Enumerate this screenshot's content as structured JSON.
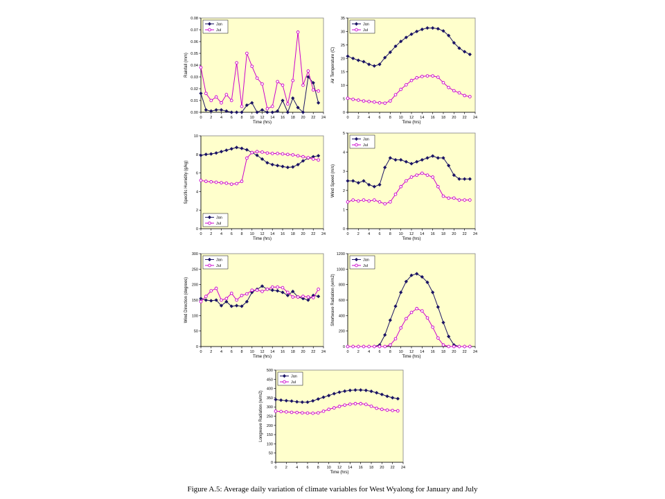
{
  "figure": {
    "caption": "Figure A.5: Average daily variation of climate variables for West Wyalong for January and July"
  },
  "colors": {
    "plot_bg": "#ffffcc",
    "jan": "#1b1464",
    "jul": "#cc00cc",
    "axis": "#000000"
  },
  "chart_data": [
    {
      "type": "line",
      "xlabel": "Time (hrs)",
      "ylabel": "Rainfall (mm)",
      "xlim": [
        0,
        24
      ],
      "xticks": [
        0,
        2,
        4,
        6,
        8,
        10,
        12,
        14,
        16,
        18,
        20,
        22,
        24
      ],
      "ylim": [
        0,
        0.08
      ],
      "yticks": [
        0,
        0.01,
        0.02,
        0.03,
        0.04,
        0.05,
        0.06,
        0.07,
        0.08
      ],
      "ytick_labels": [
        "0.00",
        "0.01",
        "0.02",
        "0.03",
        "0.04",
        "0.05",
        "0.06",
        "0.07",
        "0.08"
      ],
      "legend": "top-left",
      "x": [
        0,
        1,
        2,
        3,
        4,
        5,
        6,
        7,
        8,
        9,
        10,
        11,
        12,
        13,
        14,
        15,
        16,
        17,
        18,
        19,
        20,
        21,
        22,
        23
      ],
      "series": [
        {
          "name": "Jan",
          "marker": "diamond",
          "values": [
            0.016,
            0.002,
            0.001,
            0.002,
            0.002,
            0.001,
            0.0,
            0.0,
            0.0,
            0.006,
            0.008,
            0.0,
            0.002,
            0.0,
            0.0,
            0.001,
            0.01,
            0.0,
            0.012,
            0.004,
            0.0,
            0.03,
            0.025,
            0.008
          ]
        },
        {
          "name": "Jul",
          "marker": "circle",
          "values": [
            0.038,
            0.016,
            0.01,
            0.013,
            0.008,
            0.015,
            0.01,
            0.042,
            0.005,
            0.05,
            0.039,
            0.029,
            0.024,
            0.003,
            0.005,
            0.026,
            0.023,
            0.007,
            0.027,
            0.068,
            0.023,
            0.035,
            0.019,
            0.018
          ]
        }
      ]
    },
    {
      "type": "line",
      "xlabel": "Time (hrs)",
      "ylabel": "Air Temperature (C)",
      "xlim": [
        0,
        24
      ],
      "xticks": [
        0,
        2,
        4,
        6,
        8,
        10,
        12,
        14,
        16,
        18,
        20,
        22,
        24
      ],
      "ylim": [
        0,
        35
      ],
      "yticks": [
        0,
        5,
        10,
        15,
        20,
        25,
        30,
        35
      ],
      "legend": "top-left",
      "x": [
        0,
        1,
        2,
        3,
        4,
        5,
        6,
        7,
        8,
        9,
        10,
        11,
        12,
        13,
        14,
        15,
        16,
        17,
        18,
        19,
        20,
        21,
        22,
        23
      ],
      "series": [
        {
          "name": "Jan",
          "marker": "diamond",
          "values": [
            20.8,
            20,
            19.3,
            18.8,
            17.8,
            17.2,
            17.8,
            20.3,
            22.3,
            24.5,
            26.3,
            27.8,
            29,
            30,
            30.8,
            31.3,
            31.3,
            31,
            30.2,
            28.5,
            25.8,
            23.8,
            22.5,
            21.5
          ]
        },
        {
          "name": "Jul",
          "marker": "circle",
          "values": [
            5.2,
            4.8,
            4.5,
            4.2,
            4,
            3.8,
            3.5,
            3.4,
            4.2,
            6.5,
            8.5,
            10.2,
            11.8,
            12.8,
            13.3,
            13.5,
            13.5,
            13,
            11,
            9.2,
            8,
            7.2,
            6.2,
            5.8
          ]
        }
      ]
    },
    {
      "type": "line",
      "xlabel": "Time (hrs)",
      "ylabel": "Specific Humidity (g/kg)",
      "xlim": [
        0,
        24
      ],
      "xticks": [
        0,
        2,
        4,
        6,
        8,
        10,
        12,
        14,
        16,
        18,
        20,
        22,
        24
      ],
      "ylim": [
        0,
        10
      ],
      "yticks": [
        0,
        2,
        4,
        6,
        8,
        10
      ],
      "legend": "bottom-left",
      "x": [
        0,
        1,
        2,
        3,
        4,
        5,
        6,
        7,
        8,
        9,
        10,
        11,
        12,
        13,
        14,
        15,
        16,
        17,
        18,
        19,
        20,
        21,
        22,
        23
      ],
      "series": [
        {
          "name": "Jan",
          "marker": "diamond",
          "values": [
            7.9,
            8,
            8.05,
            8.15,
            8.3,
            8.45,
            8.6,
            8.75,
            8.65,
            8.5,
            8.2,
            7.9,
            7.5,
            7.1,
            6.9,
            6.8,
            6.7,
            6.6,
            6.65,
            6.9,
            7.3,
            7.6,
            7.75,
            7.85
          ]
        },
        {
          "name": "Jul",
          "marker": "circle",
          "values": [
            5.2,
            5.1,
            5.05,
            5,
            4.95,
            4.9,
            4.8,
            4.85,
            5.1,
            7.6,
            8.2,
            8.3,
            8.25,
            8.15,
            8.1,
            8.1,
            8.05,
            8,
            7.95,
            7.85,
            7.75,
            7.65,
            7.5,
            7.4
          ]
        }
      ]
    },
    {
      "type": "line",
      "xlabel": "Time (hrs)",
      "ylabel": "Wind Speed (m/s)",
      "xlim": [
        0,
        24
      ],
      "xticks": [
        0,
        2,
        4,
        6,
        8,
        10,
        12,
        14,
        16,
        18,
        20,
        22,
        24
      ],
      "ylim": [
        0,
        5
      ],
      "yticks": [
        0,
        1,
        2,
        3,
        4,
        5
      ],
      "legend": "top-left",
      "x": [
        0,
        1,
        2,
        3,
        4,
        5,
        6,
        7,
        8,
        9,
        10,
        11,
        12,
        13,
        14,
        15,
        16,
        17,
        18,
        19,
        20,
        21,
        22,
        23
      ],
      "series": [
        {
          "name": "Jan",
          "marker": "diamond",
          "values": [
            2.5,
            2.5,
            2.4,
            2.5,
            2.3,
            2.2,
            2.3,
            3.2,
            3.7,
            3.6,
            3.6,
            3.5,
            3.4,
            3.5,
            3.6,
            3.7,
            3.8,
            3.7,
            3.7,
            3.3,
            2.8,
            2.6,
            2.6,
            2.6
          ]
        },
        {
          "name": "Jul",
          "marker": "circle",
          "values": [
            1.4,
            1.5,
            1.45,
            1.5,
            1.45,
            1.5,
            1.4,
            1.3,
            1.4,
            1.8,
            2.2,
            2.5,
            2.7,
            2.8,
            2.9,
            2.8,
            2.7,
            2.2,
            1.7,
            1.6,
            1.6,
            1.5,
            1.5,
            1.5
          ]
        }
      ]
    },
    {
      "type": "line",
      "xlabel": "Time (hrs)",
      "ylabel": "Wind Direction (degrees)",
      "xlim": [
        0,
        24
      ],
      "xticks": [
        0,
        2,
        4,
        6,
        8,
        10,
        12,
        14,
        16,
        18,
        20,
        22,
        24
      ],
      "ylim": [
        0,
        300
      ],
      "yticks": [
        0,
        50,
        100,
        150,
        200,
        250,
        300
      ],
      "legend": "top-left",
      "x": [
        0,
        1,
        2,
        3,
        4,
        5,
        6,
        7,
        8,
        9,
        10,
        11,
        12,
        13,
        14,
        15,
        16,
        17,
        18,
        19,
        20,
        21,
        22,
        23
      ],
      "series": [
        {
          "name": "Jan",
          "marker": "diamond",
          "values": [
            155,
            150,
            148,
            150,
            132,
            145,
            130,
            132,
            130,
            145,
            175,
            185,
            195,
            185,
            182,
            180,
            175,
            165,
            178,
            160,
            155,
            150,
            165,
            162
          ]
        },
        {
          "name": "Jul",
          "marker": "circle",
          "values": [
            145,
            162,
            180,
            188,
            150,
            155,
            172,
            150,
            165,
            170,
            182,
            182,
            178,
            185,
            192,
            192,
            190,
            175,
            160,
            160,
            162,
            160,
            158,
            185
          ]
        }
      ]
    },
    {
      "type": "line",
      "xlabel": "Time (hrs)",
      "ylabel": "Shortwave Radiation (w/m2)",
      "xlim": [
        0,
        24
      ],
      "xticks": [
        0,
        2,
        4,
        6,
        8,
        10,
        12,
        14,
        16,
        18,
        20,
        22,
        24
      ],
      "ylim": [
        0,
        1200
      ],
      "yticks": [
        0,
        200,
        400,
        600,
        800,
        1000,
        1200
      ],
      "legend": "top-left",
      "x": [
        0,
        1,
        2,
        3,
        4,
        5,
        6,
        7,
        8,
        9,
        10,
        11,
        12,
        13,
        14,
        15,
        16,
        17,
        18,
        19,
        20,
        21,
        22,
        23
      ],
      "series": [
        {
          "name": "Jan",
          "marker": "diamond",
          "values": [
            0,
            0,
            0,
            0,
            0,
            0,
            20,
            150,
            340,
            520,
            700,
            840,
            920,
            940,
            900,
            830,
            700,
            510,
            310,
            130,
            20,
            0,
            0,
            0
          ]
        },
        {
          "name": "Jul",
          "marker": "circle",
          "values": [
            0,
            0,
            0,
            0,
            0,
            0,
            0,
            0,
            20,
            100,
            240,
            360,
            440,
            490,
            460,
            370,
            250,
            110,
            20,
            0,
            0,
            0,
            0,
            0
          ]
        }
      ]
    },
    {
      "type": "line",
      "xlabel": "Time (hrs)",
      "ylabel": "Longwave Radiation (w/m2)",
      "xlim": [
        0,
        24
      ],
      "xticks": [
        0,
        2,
        4,
        6,
        8,
        10,
        12,
        14,
        16,
        18,
        20,
        22,
        24
      ],
      "ylim": [
        0,
        500
      ],
      "yticks": [
        0,
        50,
        100,
        150,
        200,
        250,
        300,
        350,
        400,
        450,
        500
      ],
      "legend": "top-left",
      "x": [
        0,
        1,
        2,
        3,
        4,
        5,
        6,
        7,
        8,
        9,
        10,
        11,
        12,
        13,
        14,
        15,
        16,
        17,
        18,
        19,
        20,
        21,
        22,
        23
      ],
      "series": [
        {
          "name": "Jan",
          "marker": "diamond",
          "values": [
            340,
            337,
            334,
            332,
            328,
            326,
            326,
            333,
            343,
            353,
            362,
            372,
            380,
            386,
            390,
            392,
            392,
            390,
            385,
            377,
            368,
            358,
            350,
            345
          ]
        },
        {
          "name": "Jul",
          "marker": "circle",
          "values": [
            277,
            275,
            273,
            271,
            270,
            268,
            267,
            266,
            268,
            277,
            287,
            295,
            303,
            310,
            315,
            318,
            318,
            314,
            304,
            293,
            287,
            283,
            281,
            279
          ]
        }
      ]
    }
  ]
}
